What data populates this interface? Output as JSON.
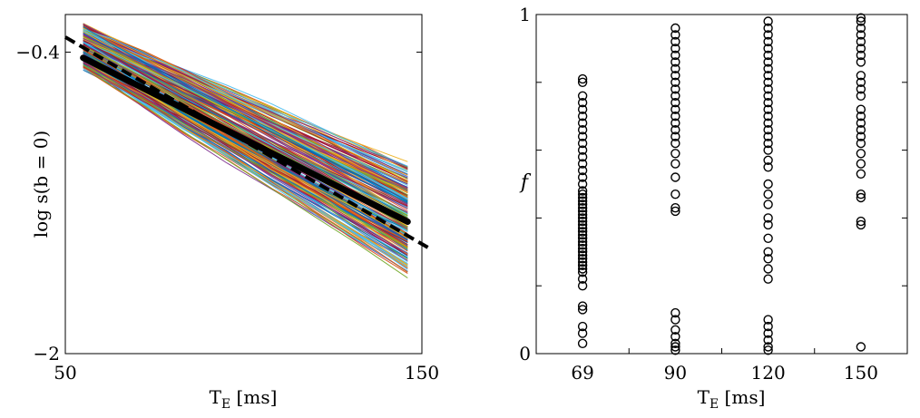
{
  "chart_data": [
    {
      "type": "line",
      "ylabel": "log s(b = 0)",
      "xlabel": {
        "main": "T",
        "sub": "E",
        "unit": " [ms]"
      },
      "xlim": [
        50,
        150
      ],
      "ylim": [
        -2,
        -0.2
      ],
      "xticks": [
        50,
        150
      ],
      "yticks": [
        -0.4,
        -2
      ],
      "xtick_labels": [
        "50",
        "150"
      ],
      "ytick_labels": [
        "−0.4",
        "−2"
      ],
      "grid": false,
      "series_count": 220,
      "series_x_range": [
        55,
        146
      ],
      "series_y_start_range": [
        -0.49,
        -0.25
      ],
      "series_y_end_range": [
        -1.63,
        -0.99
      ],
      "mean_line": {
        "x": [
          55,
          146
        ],
        "y": [
          -0.43,
          -1.3
        ],
        "color": "#000000"
      },
      "fit_line": {
        "x": [
          50,
          152
        ],
        "y": [
          -0.32,
          -1.44
        ],
        "color": "#000000",
        "dashed": true
      },
      "palette": [
        "#0072BD",
        "#D95319",
        "#EDB120",
        "#7E2F8E",
        "#77AC30",
        "#4DBEEE",
        "#A2142F"
      ]
    },
    {
      "type": "scatter",
      "ylabel": "f",
      "xlabel": {
        "main": "T",
        "sub": "E",
        "unit": " [ms]"
      },
      "ylim": [
        0,
        1
      ],
      "yticks": [
        0,
        1
      ],
      "ytick_labels": [
        "0",
        "1"
      ],
      "categories": [
        "69",
        "90",
        "120",
        "150"
      ],
      "marker": "open-circle",
      "marker_color": "#000000",
      "series": [
        {
          "x": "69",
          "values": [
            0.03,
            0.06,
            0.08,
            0.13,
            0.14,
            0.2,
            0.22,
            0.24,
            0.25,
            0.26,
            0.27,
            0.28,
            0.29,
            0.3,
            0.31,
            0.32,
            0.33,
            0.34,
            0.35,
            0.36,
            0.37,
            0.38,
            0.39,
            0.4,
            0.41,
            0.42,
            0.43,
            0.44,
            0.45,
            0.46,
            0.47,
            0.48,
            0.5,
            0.52,
            0.54,
            0.56,
            0.58,
            0.6,
            0.62,
            0.64,
            0.66,
            0.68,
            0.7,
            0.72,
            0.74,
            0.76,
            0.8,
            0.81
          ]
        },
        {
          "x": "90",
          "values": [
            0.01,
            0.02,
            0.03,
            0.05,
            0.07,
            0.1,
            0.12,
            0.42,
            0.43,
            0.47,
            0.52,
            0.56,
            0.59,
            0.62,
            0.64,
            0.66,
            0.68,
            0.7,
            0.72,
            0.74,
            0.76,
            0.78,
            0.8,
            0.82,
            0.84,
            0.86,
            0.88,
            0.9,
            0.92,
            0.94,
            0.96
          ]
        },
        {
          "x": "120",
          "values": [
            0.01,
            0.02,
            0.04,
            0.06,
            0.08,
            0.1,
            0.22,
            0.25,
            0.28,
            0.3,
            0.34,
            0.38,
            0.4,
            0.44,
            0.47,
            0.5,
            0.55,
            0.57,
            0.6,
            0.62,
            0.64,
            0.66,
            0.68,
            0.7,
            0.72,
            0.74,
            0.76,
            0.78,
            0.8,
            0.82,
            0.84,
            0.86,
            0.88,
            0.9,
            0.92,
            0.94,
            0.96,
            0.98
          ]
        },
        {
          "x": "150",
          "values": [
            0.02,
            0.38,
            0.39,
            0.46,
            0.47,
            0.53,
            0.56,
            0.59,
            0.62,
            0.64,
            0.66,
            0.68,
            0.7,
            0.72,
            0.76,
            0.78,
            0.8,
            0.82,
            0.86,
            0.88,
            0.9,
            0.92,
            0.94,
            0.96,
            0.98,
            0.99
          ]
        }
      ]
    }
  ]
}
